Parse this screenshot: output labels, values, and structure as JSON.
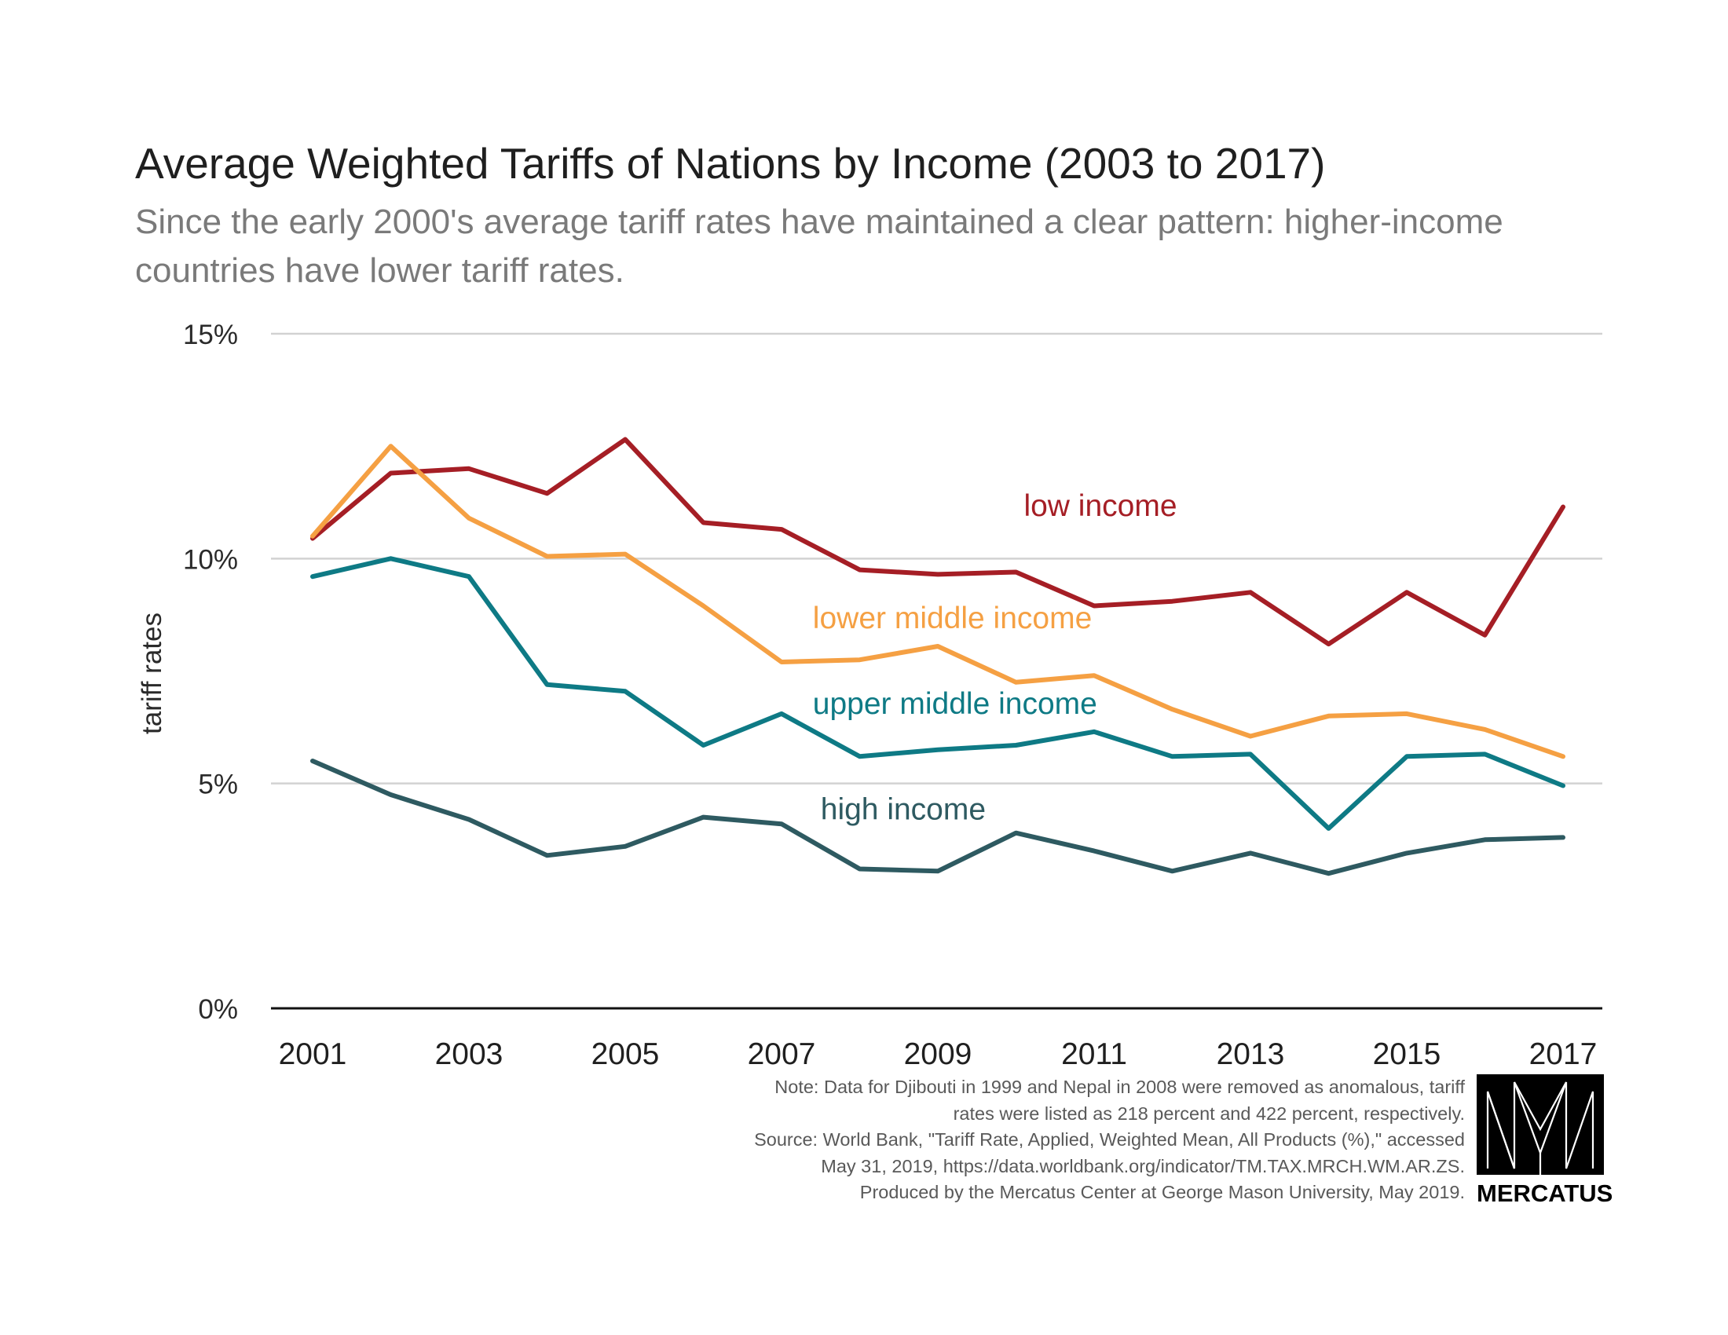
{
  "title": "Average Weighted Tariffs of Nations by Income (2003 to 2017)",
  "subtitle": "Since the early 2000's average tariff rates have maintained a clear pattern: higher-income countries have lower tariff rates.",
  "notes": [
    "Note: Data for Djibouti in 1999 and Nepal in 2008 were removed as anomalous, tariff",
    "rates were listed as 218 percent and 422 percent, respectively.",
    "Source: World Bank, \"Tariff Rate, Applied, Weighted Mean, All Products (%),\" accessed",
    "May 31, 2019, https://data.worldbank.org/indicator/TM.TAX.MRCH.WM.AR.ZS.",
    "Produced by the Mercatus Center at George Mason University, May 2019."
  ],
  "logo": {
    "text": "MERCATUS"
  },
  "chart_data": {
    "type": "line",
    "title": "Average Weighted Tariffs of Nations by Income (2003 to 2017)",
    "ylabel": "tariff rates",
    "xlabel": "",
    "ylim": [
      0,
      15
    ],
    "xlim": [
      2001,
      2017
    ],
    "y_ticks": [
      {
        "value": 0,
        "label": "0%"
      },
      {
        "value": 5,
        "label": "5%"
      },
      {
        "value": 10,
        "label": "10%"
      },
      {
        "value": 15,
        "label": "15%"
      }
    ],
    "x_ticks": [
      {
        "value": 2001,
        "label": "2001"
      },
      {
        "value": 2003,
        "label": "2003"
      },
      {
        "value": 2005,
        "label": "2005"
      },
      {
        "value": 2007,
        "label": "2007"
      },
      {
        "value": 2009,
        "label": "2009"
      },
      {
        "value": 2011,
        "label": "2011"
      },
      {
        "value": 2013,
        "label": "2013"
      },
      {
        "value": 2015,
        "label": "2015"
      },
      {
        "value": 2017,
        "label": "2017"
      }
    ],
    "grid": true,
    "legend": "inline labels",
    "x": [
      2001,
      2002,
      2003,
      2004,
      2005,
      2006,
      2007,
      2008,
      2009,
      2010,
      2011,
      2012,
      2013,
      2014,
      2015,
      2016,
      2017
    ],
    "series": [
      {
        "name": "low income",
        "color": "#a51e25",
        "values": [
          10.45,
          11.9,
          12.0,
          11.45,
          12.65,
          10.8,
          10.65,
          9.75,
          9.65,
          9.7,
          8.95,
          9.05,
          9.25,
          8.1,
          9.25,
          8.3,
          11.15
        ],
        "label_anchor": [
          2010.1,
          10.95
        ]
      },
      {
        "name": "lower middle income",
        "color": "#f5a043",
        "values": [
          10.5,
          12.5,
          10.9,
          10.05,
          10.1,
          8.95,
          7.7,
          7.75,
          8.05,
          7.25,
          7.4,
          6.65,
          6.05,
          6.5,
          6.55,
          6.2,
          5.6
        ],
        "label_anchor": [
          2007.4,
          8.45
        ]
      },
      {
        "name": "upper middle income",
        "color": "#0e7a85",
        "values": [
          9.6,
          10.0,
          9.6,
          7.2,
          7.05,
          5.85,
          6.55,
          5.6,
          5.75,
          5.85,
          6.15,
          5.6,
          5.65,
          4.0,
          5.6,
          5.65,
          4.95
        ],
        "label_anchor": [
          2007.4,
          6.55
        ]
      },
      {
        "name": "high income",
        "color": "#2e5a61",
        "values": [
          5.5,
          4.75,
          4.2,
          3.4,
          3.6,
          4.25,
          4.1,
          3.1,
          3.05,
          3.9,
          3.5,
          3.05,
          3.45,
          3.0,
          3.45,
          3.75,
          3.8
        ],
        "label_anchor": [
          2007.5,
          4.2
        ]
      }
    ]
  }
}
